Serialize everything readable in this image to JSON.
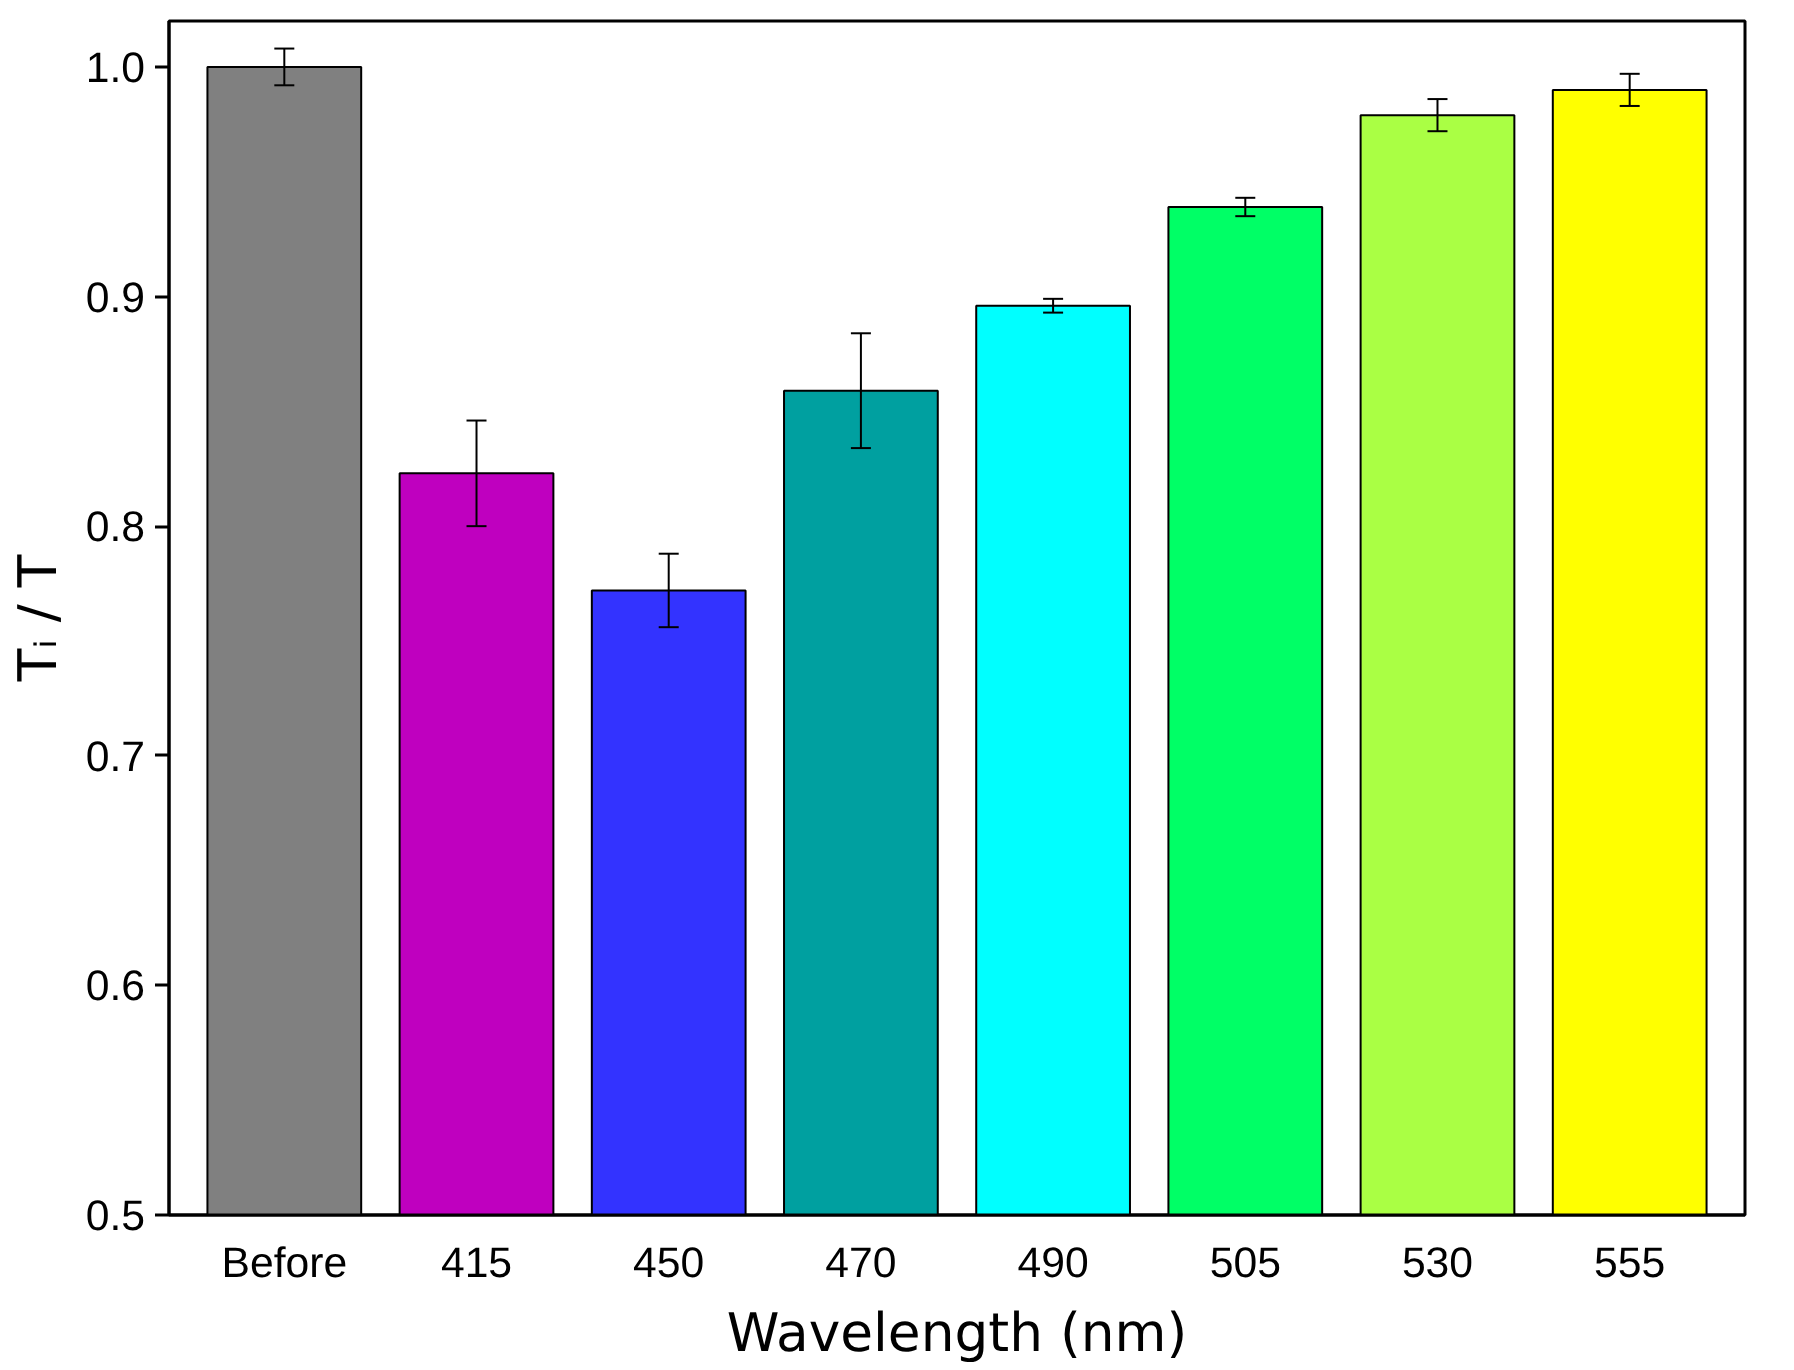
{
  "chart_data": {
    "type": "bar",
    "xlabel": "Wavelength (nm)",
    "ylabel": "Tᵢ / T",
    "categories": [
      "Before",
      "415",
      "450",
      "470",
      "490",
      "505",
      "530",
      "555"
    ],
    "values": [
      1.0,
      0.823,
      0.772,
      0.859,
      0.896,
      0.939,
      0.979,
      0.99
    ],
    "errors": [
      0.008,
      0.023,
      0.016,
      0.025,
      0.003,
      0.004,
      0.007,
      0.007
    ],
    "colors": [
      "#808080",
      "#bf00bf",
      "#3333ff",
      "#00a0a0",
      "#00ffff",
      "#00ff66",
      "#aaff44",
      "#ffff00"
    ],
    "ylim": [
      0.5,
      1.02
    ],
    "yticks": [
      {
        "value": 0.5,
        "label": "0.5"
      },
      {
        "value": 0.6,
        "label": "0.6"
      },
      {
        "value": 0.7,
        "label": "0.7"
      },
      {
        "value": 0.8,
        "label": "0.8"
      },
      {
        "value": 0.9,
        "label": "0.9"
      },
      {
        "value": 1.0,
        "label": "1.0"
      }
    ],
    "grid": false
  }
}
